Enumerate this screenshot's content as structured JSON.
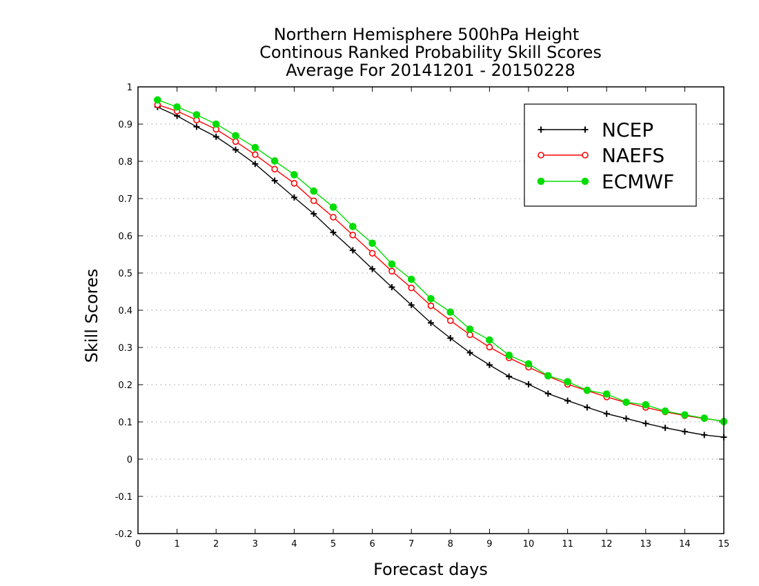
{
  "chart_data": {
    "type": "line",
    "title_lines": [
      "Northern Hemisphere 500hPa Height",
      "Continous Ranked Probability Skill Scores",
      "Average For 20141201 - 20150228"
    ],
    "xlabel": "Forecast days",
    "ylabel": "Skill Scores",
    "xlim": [
      0,
      15
    ],
    "ylim": [
      -0.2,
      1
    ],
    "x_ticks": [
      0,
      1,
      2,
      3,
      4,
      5,
      6,
      7,
      8,
      9,
      10,
      11,
      12,
      13,
      14,
      15
    ],
    "y_ticks": [
      -0.2,
      -0.1,
      0,
      0.1,
      0.2,
      0.3,
      0.4,
      0.5,
      0.6,
      0.7,
      0.8,
      0.9,
      1
    ],
    "y_tick_labels": [
      "-0.2",
      "-0.1",
      "0",
      "0.1",
      "0.2",
      "0.3",
      "0.4",
      "0.5",
      "0.6",
      "0.7",
      "0.8",
      "0.9",
      "1"
    ],
    "grid": "horizontal dotted",
    "legend_position": "top-right",
    "x": [
      0.5,
      1,
      1.5,
      2,
      2.5,
      3,
      3.5,
      4,
      4.5,
      5,
      5.5,
      6,
      6.5,
      7,
      7.5,
      8,
      8.5,
      9,
      9.5,
      10,
      10.5,
      11,
      11.5,
      12,
      12.5,
      13,
      13.5,
      14,
      14.5,
      15
    ],
    "series": [
      {
        "name": "NCEP",
        "color": "#000000",
        "marker": "plus",
        "values": [
          0.946,
          0.922,
          0.893,
          0.866,
          0.831,
          0.793,
          0.748,
          0.703,
          0.659,
          0.609,
          0.561,
          0.511,
          0.462,
          0.414,
          0.366,
          0.325,
          0.286,
          0.253,
          0.222,
          0.201,
          0.176,
          0.157,
          0.139,
          0.122,
          0.109,
          0.096,
          0.084,
          0.074,
          0.065,
          0.059
        ]
      },
      {
        "name": "NAEFS",
        "color": "#ff0000",
        "marker": "open-circle",
        "values": [
          0.952,
          0.935,
          0.911,
          0.886,
          0.853,
          0.818,
          0.779,
          0.741,
          0.694,
          0.65,
          0.602,
          0.553,
          0.505,
          0.46,
          0.412,
          0.372,
          0.334,
          0.301,
          0.272,
          0.247,
          0.223,
          0.201,
          0.184,
          0.167,
          0.152,
          0.139,
          0.127,
          0.117,
          0.109,
          0.102
        ]
      },
      {
        "name": "ECMWF",
        "color": "#00dd00",
        "marker": "filled-circle",
        "values": [
          0.965,
          0.946,
          0.925,
          0.9,
          0.869,
          0.837,
          0.801,
          0.764,
          0.72,
          0.677,
          0.625,
          0.58,
          0.524,
          0.483,
          0.431,
          0.395,
          0.349,
          0.32,
          0.279,
          0.256,
          0.224,
          0.208,
          0.185,
          0.175,
          0.153,
          0.146,
          0.129,
          0.119,
          0.11,
          0.101
        ]
      }
    ]
  }
}
